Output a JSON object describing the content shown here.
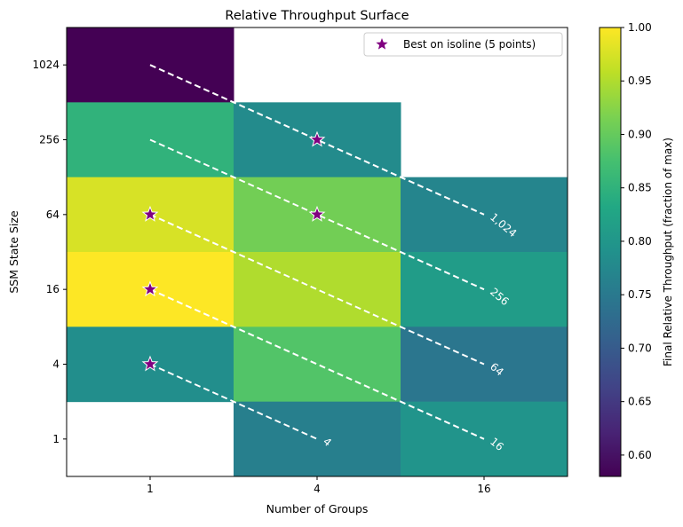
{
  "chart_data": {
    "type": "heatmap",
    "title": "Relative Throughput Surface",
    "xlabel": "Number of Groups",
    "ylabel": "SSM State Size",
    "x_categories": [
      "1",
      "4",
      "16"
    ],
    "y_categories": [
      "1",
      "4",
      "16",
      "64",
      "256",
      "1024"
    ],
    "cells": [
      {
        "x": "1",
        "y": "1024",
        "value": 0.58
      },
      {
        "x": "1",
        "y": "256",
        "value": 0.85
      },
      {
        "x": "4",
        "y": "256",
        "value": 0.78
      },
      {
        "x": "1",
        "y": "64",
        "value": 0.975
      },
      {
        "x": "4",
        "y": "64",
        "value": 0.91
      },
      {
        "x": "16",
        "y": "64",
        "value": 0.77
      },
      {
        "x": "1",
        "y": "16",
        "value": 1.0
      },
      {
        "x": "4",
        "y": "16",
        "value": 0.95
      },
      {
        "x": "16",
        "y": "16",
        "value": 0.81
      },
      {
        "x": "1",
        "y": "4",
        "value": 0.785
      },
      {
        "x": "4",
        "y": "4",
        "value": 0.885
      },
      {
        "x": "16",
        "y": "4",
        "value": 0.745
      },
      {
        "x": "4",
        "y": "1",
        "value": 0.76
      },
      {
        "x": "16",
        "y": "1",
        "value": 0.795
      }
    ],
    "isolines": [
      {
        "label": "4",
        "points": [
          {
            "x": "1",
            "y": "4"
          },
          {
            "x": "4",
            "y": "1"
          }
        ]
      },
      {
        "label": "16",
        "points": [
          {
            "x": "1",
            "y": "16"
          },
          {
            "x": "4",
            "y": "4"
          },
          {
            "x": "16",
            "y": "1"
          }
        ]
      },
      {
        "label": "64",
        "points": [
          {
            "x": "1",
            "y": "64"
          },
          {
            "x": "4",
            "y": "16"
          },
          {
            "x": "16",
            "y": "4"
          }
        ]
      },
      {
        "label": "256",
        "points": [
          {
            "x": "1",
            "y": "256"
          },
          {
            "x": "4",
            "y": "64"
          },
          {
            "x": "16",
            "y": "16"
          }
        ]
      },
      {
        "label": "1,024",
        "points": [
          {
            "x": "1",
            "y": "1024"
          },
          {
            "x": "4",
            "y": "256"
          },
          {
            "x": "16",
            "y": "64"
          }
        ]
      }
    ],
    "best_points": [
      {
        "x": "1",
        "y": "4"
      },
      {
        "x": "1",
        "y": "16"
      },
      {
        "x": "1",
        "y": "64"
      },
      {
        "x": "4",
        "y": "64"
      },
      {
        "x": "4",
        "y": "256"
      }
    ],
    "legend": {
      "label": "Best on isoline (5 points)",
      "position": "top-right",
      "marker_color": "#800080"
    },
    "colorbar": {
      "label": "Final Relative Throughput (fraction of max)",
      "min": 0.58,
      "max": 1.0,
      "ticks": [
        "0.60",
        "0.65",
        "0.70",
        "0.75",
        "0.80",
        "0.85",
        "0.90",
        "0.95",
        "1.00"
      ],
      "colormap": "viridis"
    },
    "isoline_color": "#ffffff",
    "grid": false
  }
}
